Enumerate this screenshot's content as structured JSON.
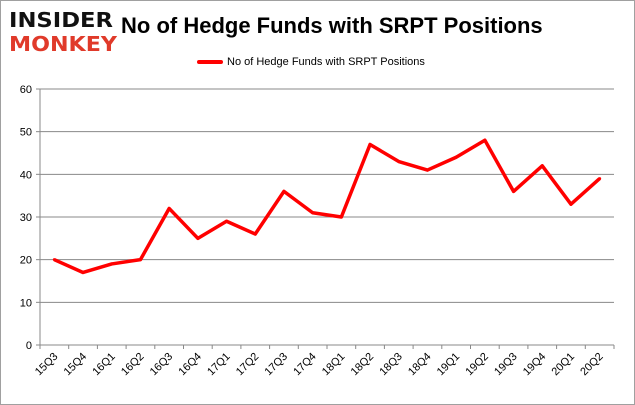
{
  "logo": {
    "line1": "INSIDER",
    "line2": "MONKEY",
    "colors": {
      "line1": "#111111",
      "line2": "#e03a2a"
    }
  },
  "chart_data": {
    "type": "line",
    "title": "No of Hedge Funds with SRPT Positions",
    "xlabel": "",
    "ylabel": "",
    "categories": [
      "15Q3",
      "15Q4",
      "16Q1",
      "16Q2",
      "16Q3",
      "16Q4",
      "17Q1",
      "17Q2",
      "17Q3",
      "17Q4",
      "18Q1",
      "18Q2",
      "18Q3",
      "18Q4",
      "19Q1",
      "19Q2",
      "19Q3",
      "19Q4",
      "20Q1",
      "20Q2"
    ],
    "series": [
      {
        "name": "No of Hedge Funds with SRPT Positions",
        "color": "#ff0000",
        "values": [
          20,
          17,
          19,
          20,
          32,
          25,
          29,
          26,
          36,
          31,
          30,
          47,
          43,
          41,
          44,
          48,
          36,
          42,
          33,
          39
        ]
      }
    ],
    "ylim": [
      0,
      60
    ],
    "yticks": [
      0,
      10,
      20,
      30,
      40,
      50,
      60
    ],
    "grid": true,
    "legend": "top-center"
  }
}
